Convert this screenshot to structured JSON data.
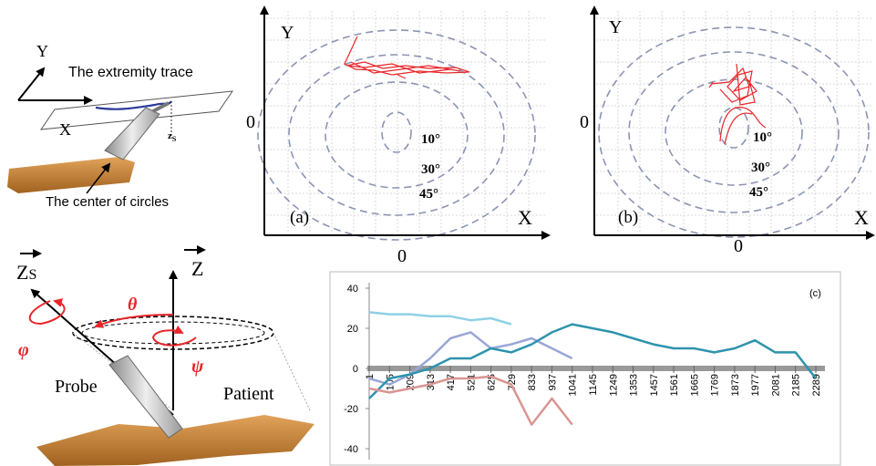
{
  "diagram_top": {
    "y_axis": "Y",
    "trace": "The extremity trace",
    "x_axis": "X",
    "zs": "z",
    "zs_sub": "S",
    "center": "The center of circles"
  },
  "fig_a": {
    "y_label": "Y",
    "y_zero": "0",
    "rings": [
      "10°",
      "30°",
      "45°"
    ],
    "panel": "(a)",
    "x_label": "X",
    "x_zero": "0"
  },
  "fig_b": {
    "y_label": "Y",
    "y_zero": "0",
    "rings": [
      "10°",
      "30°",
      "45°"
    ],
    "panel": "(b)",
    "x_label": "X",
    "x_zero": "0"
  },
  "diagram_bottom": {
    "zs": "Z",
    "zs_sub": "S",
    "z": "Z",
    "theta": "θ",
    "phi": "φ",
    "psi": "ψ",
    "probe": "Probe",
    "patient": "Patient"
  },
  "chart_data": {
    "type": "line",
    "annotations": [
      "(c)"
    ],
    "x": [
      1,
      105,
      209,
      313,
      417,
      521,
      625,
      729,
      833,
      937,
      1041,
      1145,
      1249,
      1353,
      1457,
      1561,
      1665,
      1769,
      1873,
      1977,
      2081,
      2185,
      2289
    ],
    "xlim": [
      1,
      2289
    ],
    "xticks": [
      1,
      105,
      209,
      313,
      417,
      521,
      625,
      729,
      833,
      937,
      1041,
      1145,
      1249,
      1353,
      1457,
      1561,
      1665,
      1769,
      1873,
      1977,
      2081,
      2185,
      2289
    ],
    "ylim": [
      -40,
      40
    ],
    "yticks": [
      -40,
      -20,
      0,
      20,
      40
    ],
    "series": [
      {
        "color": "#8fd0e6",
        "values": [
          28,
          27,
          27,
          26,
          26,
          24,
          25,
          22,
          null,
          null,
          null,
          null,
          null,
          null,
          null,
          null,
          null,
          null,
          null,
          null,
          null,
          null,
          null
        ]
      },
      {
        "color": "#9aa6d6",
        "values": [
          -5,
          -8,
          -3,
          5,
          15,
          18,
          10,
          12,
          15,
          10,
          5,
          null,
          null,
          null,
          null,
          null,
          null,
          null,
          null,
          null,
          null,
          null,
          null
        ]
      },
      {
        "color": "#2e93ad",
        "values": [
          -15,
          -5,
          -3,
          0,
          5,
          5,
          10,
          8,
          12,
          18,
          22,
          20,
          18,
          15,
          12,
          10,
          10,
          8,
          10,
          14,
          8,
          8,
          -5
        ]
      },
      {
        "color": "#d99592",
        "values": [
          -10,
          -12,
          -10,
          -8,
          -5,
          -5,
          -4,
          -8,
          -28,
          -15,
          -28,
          null,
          null,
          null,
          null,
          null,
          null,
          null,
          null,
          null,
          null,
          null,
          null
        ]
      }
    ]
  }
}
